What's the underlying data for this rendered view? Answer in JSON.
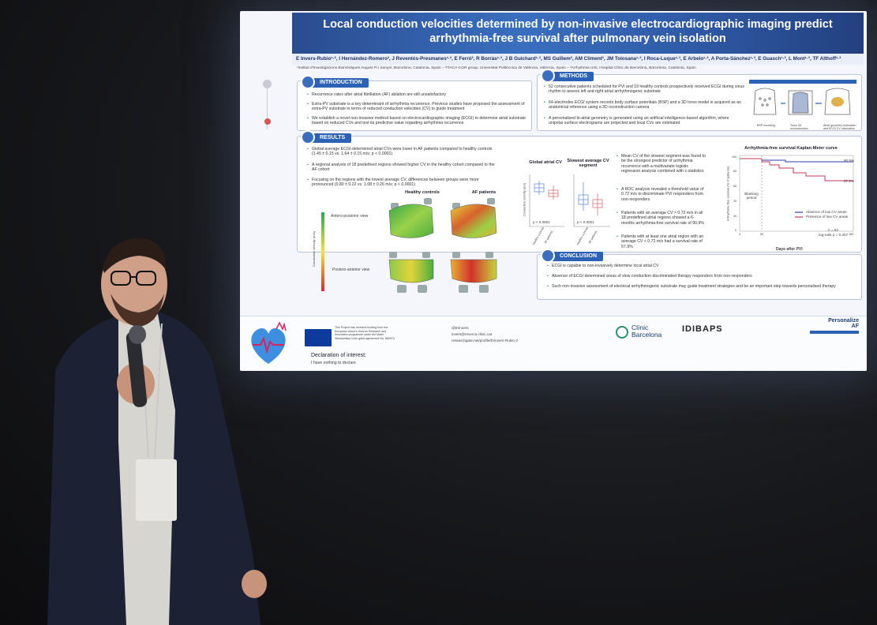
{
  "poster": {
    "title_line1": "Local conduction velocities determined by non-invasive electrocardiographic imaging predict",
    "title_line2": "arrhythmia-free survival after pulmonary vein isolation",
    "authors": "E Invers-Rubio¹·², I Hernández-Romero², J Reventós-Presmanes¹·², E Ferró³, R Borràs¹·³, J B Guichard¹·³, MS Guillem², AM Climent², JM Tolosana¹·³, I Roca-Luque¹·³, E Arbelo¹·³, A Porta-Sánchez¹·³, E Guasch¹·³, L Mont¹·³, TF Althoff¹·³",
    "affiliations": "¹Institut d'Investigacions Biomèdiques August Pi i Sunyer, Barcelona, Catalonia, Spain – ²ITACA-COR group, Universitat Politècnica de València, València, Spain – ³Arrhythmia Unit, Hospital Clínic de Barcelona, Barcelona, Catalonia, Spain",
    "introduction": {
      "header": "INTRODUCTION",
      "bullets": [
        "Recurrence rates after atrial fibrillation (AF) ablation are still unsatisfactory",
        "Extra-PV substrate is a key determinant of arrhythmia recurrence. Previous studies have proposed the assessment of extra-PV substrate in terms of reduced conduction velocities (CV) to guide treatment",
        "We establish a novel non-invasive method based on electrocardiographic imaging (ECGI) to determine atrial substrate based on reduced CVs and test its predictive value regarding arrhythmia recurrence"
      ]
    },
    "methods": {
      "header": "METHODS",
      "bullets": [
        "52 consecutive patients scheduled for PVI and 19 healthy controls prospectively received ECGI during sinus rhythm to assess left and right atrial arrhythmogenic substrate",
        "64-electrodes ECGI system records body surface potentials (BSP) and a 3D torso model is acquired as an anatomical reference using a 3D reconstruction camera",
        "A personalised bi-atrial geometry is generated using an artificial intelligence-based algorithm, where unipolar surface electrograms are projected and local CVs are estimated"
      ],
      "fig_labels": [
        "BSP recording",
        "Torso 3D reconstruction",
        "Atrial geometry estimation and ECGI CV calculation"
      ]
    },
    "results": {
      "header": "RESULTS",
      "bullets": [
        "Global average ECGI-determined atrial CVs were lower in AF patients compared to healthy controls (1.45 ± 0.15 vs. 1.64 ± 0.15 m/s; p < 0.0001)",
        "A regional analysis of 18 predefined regions showed higher CV in the healthy cohort compared to the AF cohort",
        "Focusing on the regions with the lowest average CV, differences between groups were more pronounced (0.80 ± 0.22 vs. 1.08 ± 0.26 m/s; p < 0.0001)"
      ],
      "map_labels": {
        "healthy": "Healthy controls",
        "af": "AF patients",
        "view1": "Antero-posterior view",
        "view2": "Postero-anterior view",
        "colorbar": "Conduction velocity (m/s)"
      },
      "box1_title": "Global atrial CV",
      "box2_title": "Slowest average CV segment",
      "box_ylabel": "Conduction velocity (m/s)",
      "p_value": "p < 0.0001",
      "box_x": [
        "Healthy controls",
        "AF patients"
      ],
      "right_bullets": [
        "Mean CV of the slowest segment was found to be the strongest predictor of arrhythmia recurrence with a multivariate logistic regression analysis combined with c-statistics",
        "A ROC analysis revealed a threshold value of 0.72 m/s to discriminate PVI responders from non-responders",
        "Patients with an average CV > 0.72 m/s in all 18 predefined atrial regions showed a 6-months arrhythmia-free survival rate of 90.9%",
        "Patients with at least one atrial region with an average CV < 0.72 m/s had a survival rate of 57.9%"
      ],
      "km": {
        "title": "Arrhythmia-free survival Kaplan-Meier curve",
        "ylabel": "Arrhythmia-free survival (% of patients)",
        "xlabel": "Days after PVI",
        "blanking": "Blanking period",
        "legend_a": "Absence of low CV areas",
        "legend_b": "Presence of low CV areas",
        "val_a": "90.9%",
        "val_b": "57.9%",
        "n": "n = 52",
        "logrank": "log-rank p = 0.007",
        "y_ticks": [
          "100",
          "80",
          "60",
          "40",
          "20",
          "0"
        ],
        "x_ticks": [
          "0",
          "90",
          "180"
        ]
      }
    },
    "conclusion": {
      "header": "CONCLUSION",
      "bullets": [
        "ECGI is capable to non-invasively determine local atrial CV",
        "Absence of ECGI determined areas of slow conduction discriminated therapy responders from non-responders",
        "Such non-invasive assessment of electrical arrhythmogenic substrate may guide treatment strategies and be an important step towards personalised therapy"
      ]
    },
    "footer": {
      "funding": "This Project has received funding from the European Union's Horizon Research and Innovation programme under the Marie Skłodowska-Curie grant agreement No. 860974",
      "twitter": "@Erinvers",
      "email": "invers@recerca.clinic.cat",
      "researchgate": "researchgate.net/profile/Erinvers-Rubio-2",
      "declaration_title": "Declaration of interest:",
      "declaration_text": "I have nothing to declare",
      "logo1_line1": "Clínic",
      "logo1_line2": "Barcelona",
      "logo2": "IDIBAPS",
      "logo3_line1": "Personalize",
      "logo3_line2": "AF"
    }
  },
  "colors": {
    "accent": "#2b62b5",
    "healthy": "#3b6fd1",
    "af": "#c84a4a"
  }
}
